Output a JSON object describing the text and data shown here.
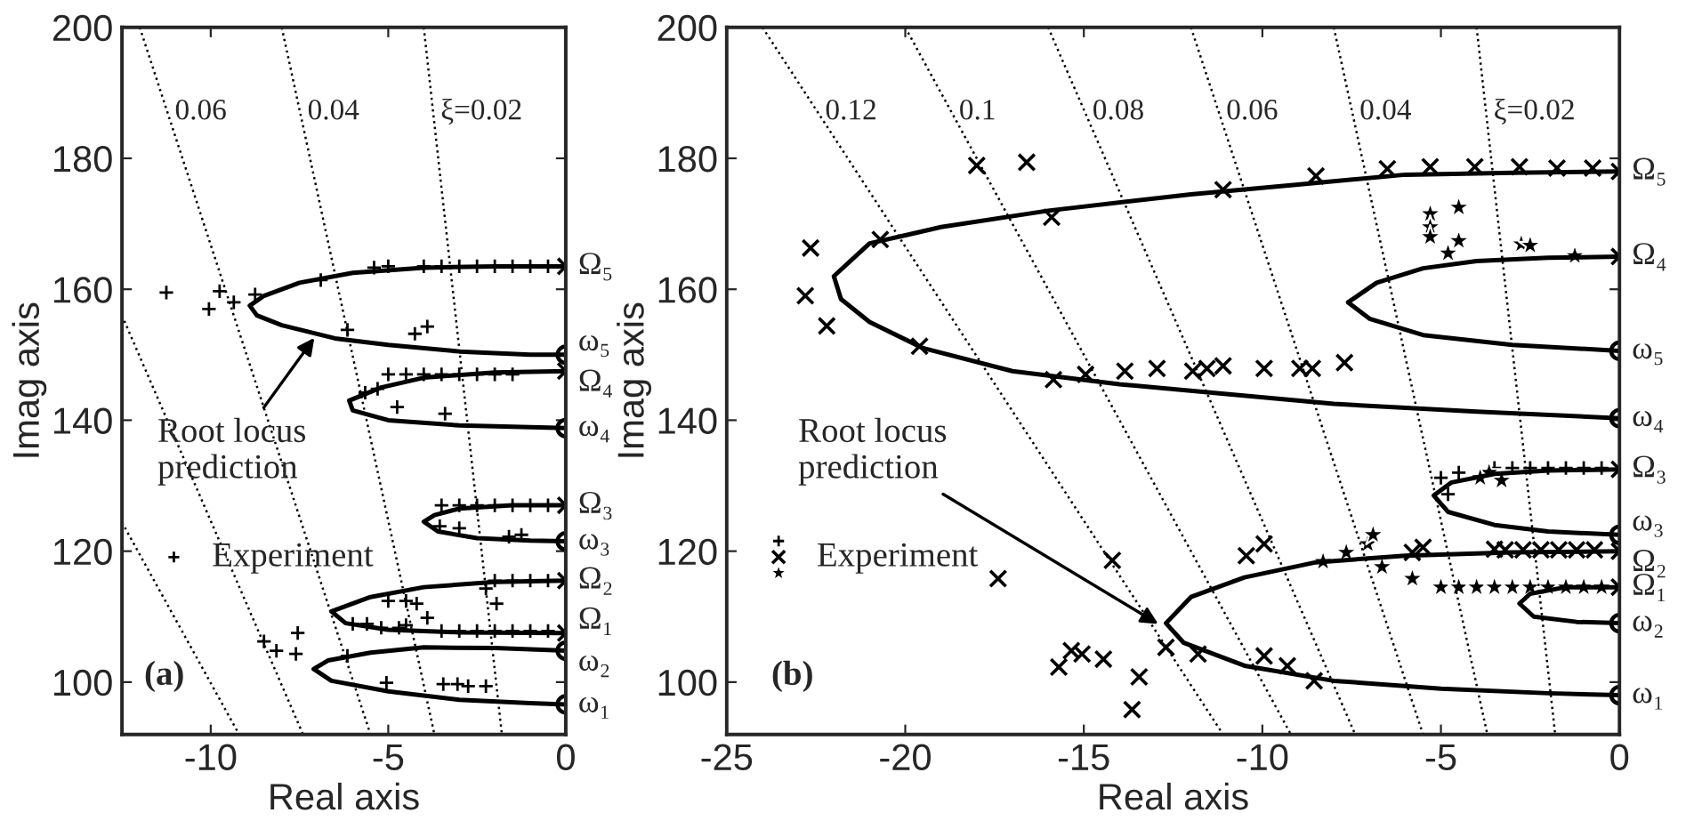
{
  "chart_data": [
    {
      "type": "line",
      "xlabel": "Real axis",
      "ylabel": "Imag axis",
      "xlim": [
        -12.5,
        0
      ],
      "ylim": [
        92,
        200
      ],
      "xticks": [
        -10,
        -5,
        0
      ],
      "yticks": [
        100,
        120,
        140,
        160,
        180,
        200
      ],
      "grid": false,
      "legend": "left",
      "annotations": [
        {
          "text": "Root locus\nprediction",
          "x": -7,
          "y": 153.2
        },
        "(a)",
        "0.06",
        "0.04",
        "ξ=0.02",
        {
          "text": "Ω₅",
          "x": 0,
          "y": 163.5
        },
        {
          "text": "ω₅",
          "x": 0,
          "y": 150
        },
        {
          "text": "Ω₄",
          "x": 0,
          "y": 147.5
        },
        {
          "text": "ω₄",
          "x": 0,
          "y": 138.8
        },
        {
          "text": "Ω₃",
          "x": 0,
          "y": 127
        },
        {
          "text": "ω₃",
          "x": 0,
          "y": 121.5
        },
        {
          "text": "Ω₂",
          "x": 0,
          "y": 115.5
        },
        {
          "text": "Ω₁",
          "x": 0,
          "y": 107.5
        },
        {
          "text": "ω₂",
          "x": 0,
          "y": 104.8
        },
        {
          "text": "ω₁",
          "x": 0,
          "y": 96.6
        }
      ],
      "series": [
        {
          "line_style": "dotted",
          "color": "#000000",
          "x": [
            -12.0,
            -5.5
          ],
          "values": [
            200,
            92
          ]
        },
        {
          "line_style": "dotted",
          "color": "#000000",
          "x": [
            -8.0,
            -3.7
          ],
          "values": [
            200,
            92
          ]
        },
        {
          "line_style": "dotted",
          "color": "#000000",
          "x": [
            -4.0,
            -1.8
          ],
          "values": [
            200,
            92
          ]
        },
        {
          "line_style": "dotted",
          "color": "#000000",
          "x": [
            -12.5,
            -7.4
          ],
          "values": [
            156,
            92
          ]
        },
        {
          "line_style": "dotted",
          "color": "#000000",
          "x": [
            -12.5,
            -9.2
          ],
          "values": [
            124.4,
            92
          ]
        },
        {
          "line_style": "solid",
          "color": "#000000",
          "x": [
            0,
            -2,
            -4,
            -6,
            -7.5,
            -8.5,
            -8.9,
            -8.7,
            -8,
            -6.5,
            -5,
            -3,
            -1,
            0
          ],
          "values": [
            163.5,
            163.5,
            163.3,
            162.5,
            161,
            159,
            157.5,
            156,
            154.5,
            152.5,
            151.5,
            150.5,
            150,
            150
          ]
        },
        {
          "line_style": "solid",
          "color": "#000000",
          "x": [
            0,
            -2,
            -4,
            -5.2,
            -6.1,
            -6.0,
            -5,
            -3,
            0
          ],
          "values": [
            147.5,
            147.3,
            146.5,
            145,
            143,
            141.5,
            140,
            139.2,
            138.8
          ]
        },
        {
          "line_style": "solid",
          "color": "#000000",
          "x": [
            0,
            -1.5,
            -3,
            -3.7,
            -4,
            -3.6,
            -2.5,
            -1,
            0
          ],
          "values": [
            127,
            127,
            126.5,
            125.5,
            124.5,
            123,
            122,
            121.6,
            121.5
          ]
        },
        {
          "line_style": "solid",
          "color": "#000000",
          "x": [
            0,
            -2,
            -4,
            -5.5,
            -6.6,
            -6.2,
            -5,
            -3,
            0
          ],
          "values": [
            115.5,
            115.3,
            114.5,
            113,
            110.8,
            109,
            108,
            107.6,
            107.5
          ]
        },
        {
          "line_style": "solid",
          "color": "#000000",
          "x": [
            0,
            -2,
            -4,
            -5.5,
            -6.7,
            -7.1,
            -6.6,
            -5,
            -3,
            -1,
            0
          ],
          "values": [
            104.8,
            105.2,
            105.3,
            104.5,
            103.3,
            102,
            100.2,
            98.6,
            97.3,
            96.8,
            96.6
          ]
        },
        {
          "type": "scatter",
          "marker": "plus",
          "color": "#000000",
          "name": "Experiment",
          "x": [
            -11.25,
            -10.05,
            -9.75,
            -9.35,
            -8.75,
            -6.9,
            -6.15,
            -4.25,
            -3.9,
            -5.4,
            -5,
            -4,
            -3.5,
            -3,
            -2.5,
            -2,
            -1.5,
            -1,
            -0.5,
            -5.65,
            -5.3,
            -4.75,
            -3.4,
            -5,
            -4.5,
            -4,
            -3.5,
            -3,
            -2.5,
            -2,
            -1.5,
            -3.55,
            -3.0,
            -1.25,
            -1.6,
            -3.5,
            -3,
            -2.5,
            -2,
            -1.5,
            -1,
            -0.5,
            -5.0,
            -4.5,
            -4.2,
            -2.25,
            -1.95,
            -2,
            -1.5,
            -1,
            -0.5,
            -6.0,
            -5.6,
            -5.2,
            -4.7,
            -4.5,
            -3.9,
            -3.5,
            -3,
            -2.5,
            -2,
            -1.5,
            -1,
            -0.5,
            -8.5,
            -8.15,
            -7.55,
            -7.6,
            -6.15,
            -5.05,
            -3.45,
            -3.05,
            -2.75,
            -2.25
          ],
          "values": [
            159.5,
            157,
            159.7,
            158,
            159.2,
            161.4,
            153.8,
            153.2,
            154.3,
            163.3,
            163.5,
            163.5,
            163.5,
            163.5,
            163.5,
            163.5,
            163.5,
            163.5,
            163.5,
            144.2,
            144.8,
            142,
            141,
            147,
            147,
            147,
            147,
            147,
            147,
            147,
            147,
            123.8,
            123.5,
            122.5,
            122.2,
            127,
            127,
            127,
            127,
            127,
            127,
            127,
            112.4,
            112.4,
            112,
            114.3,
            112,
            115.5,
            115.5,
            115.5,
            115.5,
            108.9,
            108.9,
            108.3,
            108.3,
            108.7,
            109.8,
            107.8,
            107.8,
            107.8,
            107.8,
            107.8,
            107.8,
            107.8,
            106.2,
            104.8,
            107.5,
            104.3,
            104,
            99.9,
            99.7,
            99.7,
            99.4,
            99.4
          ]
        },
        {
          "type": "scatter",
          "marker": "cross",
          "color": "#000000",
          "x": [
            0,
            0,
            0,
            0,
            0
          ],
          "values": [
            163.5,
            147.5,
            127,
            115.5,
            107.5
          ]
        },
        {
          "type": "scatter",
          "marker": "circle",
          "color": "#000000",
          "x": [
            0,
            0,
            0,
            0,
            0
          ],
          "values": [
            150,
            138.8,
            121.5,
            104.8,
            96.6
          ]
        }
      ]
    },
    {
      "type": "line",
      "xlabel": "Real axis",
      "ylabel": "Imag axis",
      "xlim": [
        -25,
        0
      ],
      "ylim": [
        92,
        200
      ],
      "xticks": [
        -25,
        -20,
        -15,
        -10,
        -5,
        0
      ],
      "yticks": [
        100,
        120,
        140,
        160,
        180,
        200
      ],
      "grid": false,
      "legend": "left",
      "annotations": [
        {
          "text": "Root locus\nprediction",
          "x": -12.8,
          "y": 108.5
        },
        "(b)",
        "0.12",
        "0.1",
        "0.08",
        "0.06",
        "0.04",
        "ξ=0.02",
        {
          "text": "Ω₅",
          "x": 0,
          "y": 178
        },
        {
          "text": "Ω₄",
          "x": 0,
          "y": 165
        },
        {
          "text": "ω₅",
          "x": 0,
          "y": 150.6
        },
        {
          "text": "ω₄",
          "x": 0,
          "y": 140.3
        },
        {
          "text": "Ω₃",
          "x": 0,
          "y": 132.5
        },
        {
          "text": "ω₃",
          "x": 0,
          "y": 122.5
        },
        {
          "text": "Ω₂",
          "x": 0,
          "y": 120
        },
        {
          "text": "Ω₁",
          "x": 0,
          "y": 114.5
        },
        {
          "text": "ω₂",
          "x": 0,
          "y": 109
        },
        {
          "text": "ω₁",
          "x": 0,
          "y": 98
        }
      ],
      "series": [
        {
          "line_style": "dotted",
          "color": "#000000",
          "x": [
            -24,
            -11.1
          ],
          "values": [
            200,
            92
          ]
        },
        {
          "line_style": "dotted",
          "color": "#000000",
          "x": [
            -20,
            -9.2
          ],
          "values": [
            200,
            92
          ]
        },
        {
          "line_style": "dotted",
          "color": "#000000",
          "x": [
            -16,
            -7.4
          ],
          "values": [
            200,
            92
          ]
        },
        {
          "line_style": "dotted",
          "color": "#000000",
          "x": [
            -12,
            -5.5
          ],
          "values": [
            200,
            92
          ]
        },
        {
          "line_style": "dotted",
          "color": "#000000",
          "x": [
            -8,
            -3.7
          ],
          "values": [
            200,
            92
          ]
        },
        {
          "line_style": "dotted",
          "color": "#000000",
          "x": [
            -4,
            -1.8
          ],
          "values": [
            200,
            92
          ]
        },
        {
          "line_style": "solid",
          "color": "#000000",
          "x": [
            0,
            -3,
            -6,
            -9,
            -12,
            -16,
            -19,
            -21,
            -22,
            -21.8,
            -21,
            -19.5,
            -17,
            -14,
            -11,
            -8,
            -4,
            0
          ],
          "values": [
            178,
            177.8,
            177.5,
            176,
            174.5,
            172,
            169.5,
            167,
            162,
            158.5,
            155,
            151,
            147.5,
            145.5,
            144,
            142.5,
            141.3,
            140.3
          ]
        },
        {
          "line_style": "solid",
          "color": "#000000",
          "x": [
            0,
            -2,
            -4,
            -5.5,
            -6.8,
            -7.6,
            -7,
            -5.5,
            -3,
            0
          ],
          "values": [
            165,
            164.8,
            164.3,
            163.2,
            161,
            158,
            155.5,
            153,
            151.5,
            150.6
          ]
        },
        {
          "line_style": "solid",
          "color": "#000000",
          "x": [
            0,
            -2,
            -3.5,
            -4.7,
            -5.2,
            -4.8,
            -3.5,
            -2,
            0
          ],
          "values": [
            132.5,
            132.3,
            131.8,
            130.5,
            128.5,
            126,
            124,
            123,
            122.5
          ]
        },
        {
          "line_style": "solid",
          "color": "#000000",
          "x": [
            0,
            -3,
            -6,
            -8.5,
            -10.5,
            -12,
            -12.7,
            -12.2,
            -10.5,
            -8,
            -5,
            -2,
            0
          ],
          "values": [
            120,
            119.8,
            119.3,
            118.3,
            116,
            113,
            109,
            106,
            102.5,
            100.2,
            99,
            98.3,
            98
          ]
        },
        {
          "line_style": "solid",
          "color": "#000000",
          "x": [
            0,
            -1.5,
            -2.5,
            -2.8,
            -2.4,
            -1.2,
            0
          ],
          "values": [
            114.5,
            114.5,
            113.5,
            112,
            110,
            109.2,
            109
          ]
        },
        {
          "type": "scatter",
          "marker": "plus",
          "color": "#000000",
          "name": "Experiment",
          "x": [
            -5.0,
            -4.8,
            -4.5,
            -3.5,
            -3,
            -2.5,
            -2,
            -1.5,
            -1,
            -0.5
          ],
          "values": [
            131.2,
            128.7,
            132,
            132.7,
            132.7,
            132.7,
            132.7,
            132.7,
            132.7,
            132.7
          ]
        },
        {
          "type": "scatter",
          "marker": "cross",
          "color": "#000000",
          "x": [
            -22.65,
            -22.8,
            -22.2,
            -20.7,
            -19.6,
            -18.0,
            -16.6,
            -15.9,
            -15.85,
            -14.95,
            -13.85,
            -12.95,
            -11.95,
            -11.55,
            -11.1,
            -9.95,
            -8.95,
            -8.6,
            -7.7,
            -11.1,
            -8.5,
            -6.5,
            -5.3,
            -4.05,
            -2.8,
            -1.75,
            -0.75,
            -17.4,
            -14.2,
            -15.7,
            -15.35,
            -15.05,
            -14.45,
            -13.45,
            -13.65,
            -10.45,
            -9.95,
            -12.7,
            -11.8,
            -9.95,
            -9.3,
            -8.55,
            -5.8,
            -5.5,
            -3.5,
            -3.2,
            -2.7,
            -2.2,
            -1.7,
            -1.2,
            -0.7
          ],
          "values": [
            166.3,
            159,
            154.4,
            167.6,
            151.3,
            178.9,
            179.4,
            171,
            146.2,
            147,
            147.5,
            147.9,
            147.5,
            147.9,
            148.3,
            147.9,
            147.9,
            147.9,
            148.8,
            175.2,
            177.3,
            178.4,
            178.7,
            178.7,
            178.7,
            178.5,
            178.5,
            115.8,
            118.6,
            102.3,
            104.8,
            104.3,
            103.5,
            100.8,
            95.8,
            119.3,
            121.1,
            105.3,
            104.3,
            104,
            102.5,
            100.2,
            119.8,
            120.6,
            120.3,
            120.2,
            120.2,
            120.2,
            120.2,
            120.2,
            120.2
          ]
        },
        {
          "type": "scatter",
          "marker": "star",
          "color": "#000000",
          "x": [
            -5.3,
            -5.3,
            -5.3,
            -4.5,
            -4.5,
            -4.8,
            -2.75,
            -2.5,
            -1.25,
            -8.3,
            -7.65,
            -7.05,
            -6.9,
            -6.65,
            -5.8,
            -5,
            -4.5,
            -4,
            -3.5,
            -3,
            -2.5,
            -2,
            -1.5,
            -1,
            -0.5,
            -3.65,
            -3.9,
            -3.3
          ],
          "values": [
            171.5,
            169.5,
            168,
            172.5,
            167.4,
            165.5,
            166.9,
            166.7,
            165.1,
            118.4,
            119.8,
            121.1,
            122.5,
            117.6,
            115.8,
            114.5,
            114.5,
            114.5,
            114.5,
            114.5,
            114.5,
            114.5,
            114.5,
            114.5,
            114.5,
            132,
            131.2,
            130.8
          ]
        },
        {
          "type": "scatter",
          "marker": "cross",
          "color": "#000000",
          "x": [
            0,
            0,
            0,
            0,
            0
          ],
          "values": [
            178,
            165,
            132.5,
            120,
            114.5
          ]
        },
        {
          "type": "scatter",
          "marker": "circle",
          "color": "#000000",
          "x": [
            0,
            0,
            0,
            0,
            0
          ],
          "values": [
            150.6,
            140.3,
            122.5,
            109,
            98
          ]
        }
      ]
    }
  ]
}
